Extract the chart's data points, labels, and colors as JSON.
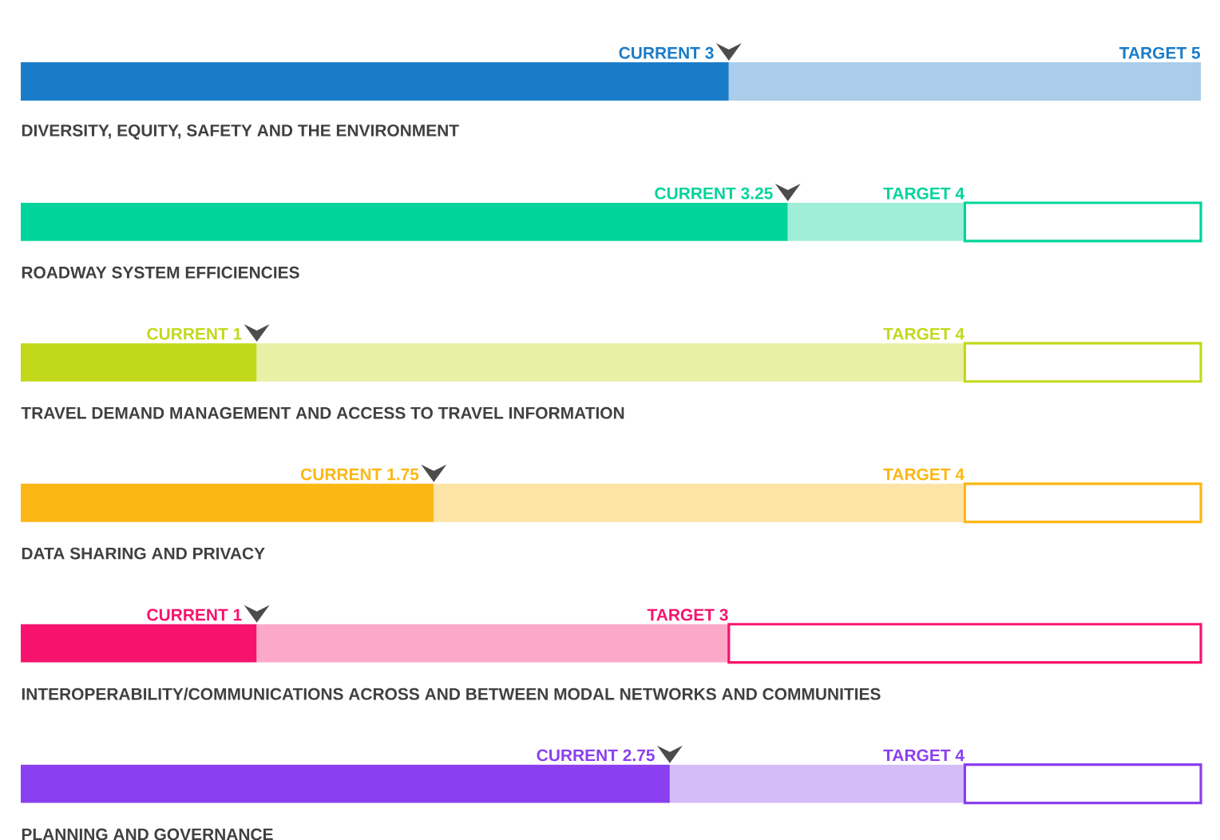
{
  "chart_data": {
    "type": "bar",
    "orientation": "horizontal",
    "stacked": true,
    "categories": [
      "DIVERSITY, EQUITY, SAFETY AND THE ENVIRONMENT",
      "ROADWAY SYSTEM EFFICIENCIES",
      "TRAVEL DEMAND MANAGEMENT AND ACCESS TO TRAVEL INFORMATION",
      "DATA SHARING AND PRIVACY",
      "INTEROPERABILITY/COMMUNICATIONS ACROSS AND BETWEEN MODAL NETWORKS AND COMMUNITIES",
      "PLANNING AND GOVERNANCE"
    ],
    "series": [
      {
        "values": [
          3,
          3.25,
          1,
          1.75,
          1,
          2.75
        ],
        "colors": [
          "#1a7cc9",
          "#00d49a",
          "#c1d91a",
          "#fbb714",
          "#f7136d",
          "#8a3ff0"
        ],
        "value_labels": [
          "CURRENT 3",
          "CURRENT 3.25",
          "CURRENT 1",
          "CURRENT 1.75",
          "CURRENT 1",
          "CURRENT 2.75"
        ]
      },
      {
        "values": [
          2,
          0.75,
          3,
          2.25,
          2,
          1.25
        ],
        "colors": [
          "#a9cdea",
          "#a1eed8",
          "#e7f0a5",
          "#fde4a6",
          "#fca9c8",
          "#d4bcf9"
        ]
      },
      {
        "values": [
          null,
          1,
          1,
          1,
          2,
          1
        ],
        "colors": [
          "#1a7cc9",
          "#00d49a",
          "#c1d91a",
          "#fbb714",
          "#f7136d",
          "#8a3ff0"
        ]
      }
    ],
    "annotations": [
      "TARGET 5",
      "TARGET 4",
      "TARGET 4",
      "TARGET 4",
      "TARGET 3",
      "TARGET 4"
    ],
    "xlim": [
      0,
      5
    ],
    "tick_labels": "y"
  }
}
